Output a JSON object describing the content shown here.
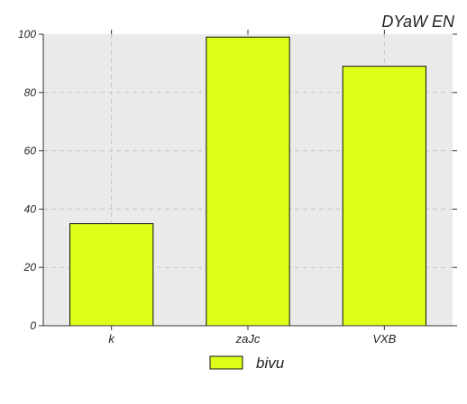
{
  "chart_data": {
    "type": "bar",
    "title": "DYaW EN",
    "xlabel": "",
    "ylabel": "",
    "categories": [
      "k",
      "zaJc",
      "VXB"
    ],
    "series": [
      {
        "name": "bivu",
        "values": [
          35,
          99,
          89
        ],
        "color": "#ddff1a"
      }
    ],
    "ylim": [
      0,
      100
    ],
    "yticks": [
      0,
      20,
      40,
      60,
      80,
      100
    ],
    "ytick_labels": [
      "0",
      "20",
      "40",
      "60",
      "80",
      "100"
    ],
    "grid": true,
    "legend_position": "bottom-center"
  },
  "colors": {
    "plot_background": "#ebebeb",
    "grid": "#c6c6c6",
    "bar_edge": "#111111"
  }
}
